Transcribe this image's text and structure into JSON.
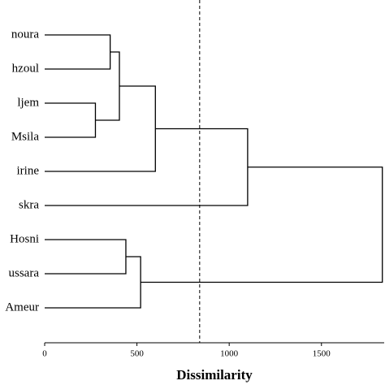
{
  "chart_data": {
    "type": "dendrogram",
    "leaves": [
      "noura",
      "hzoul",
      "ljem",
      "Msila",
      "irine",
      "skra",
      "Hosni",
      "ussara",
      "Ameur"
    ],
    "merges": [
      {
        "left": 0,
        "right": 1,
        "height": 355
      },
      {
        "left": 2,
        "right": 3,
        "height": 275
      },
      {
        "left": 9,
        "right": 10,
        "height": 405
      },
      {
        "left": 11,
        "right": 4,
        "height": 600
      },
      {
        "left": 12,
        "right": 5,
        "height": 1100
      },
      {
        "left": 6,
        "right": 7,
        "height": 440
      },
      {
        "left": 14,
        "right": 8,
        "height": 520
      },
      {
        "left": 13,
        "right": 15,
        "height": 1830
      }
    ],
    "threshold": 840,
    "xlabel": "Dissimilarity",
    "xlim": [
      0,
      1840
    ],
    "xticks": [
      0,
      500,
      1000,
      1500
    ]
  }
}
